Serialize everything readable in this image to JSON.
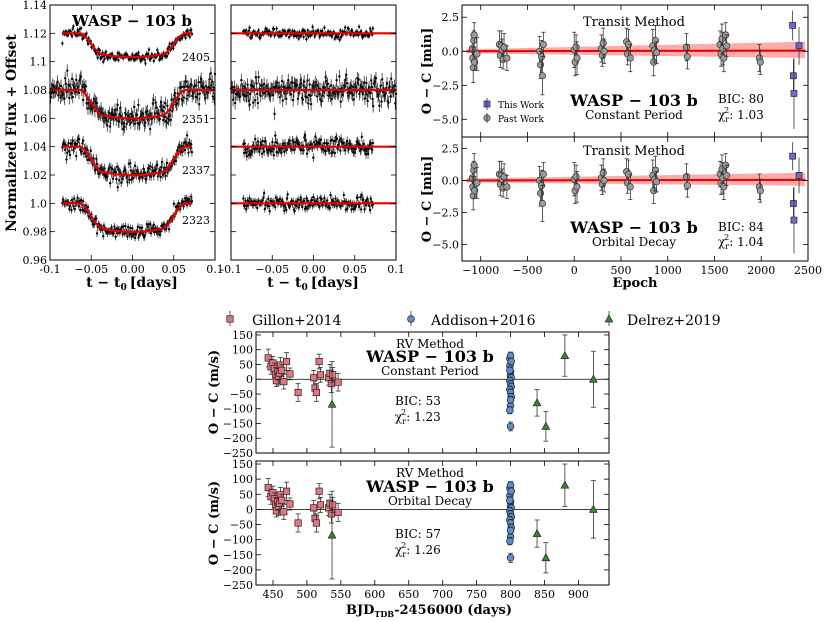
{
  "colors": {
    "model": "#e60000",
    "band": "#ff6666",
    "this_work": "#6b6bd6",
    "past_work": "#9a9a9a",
    "gillon": "#e8737f",
    "addison": "#5b8fd1",
    "delrez": "#2e8b2e"
  },
  "markers": {
    "this_work": "square",
    "past_work": "circle",
    "gillon": "square",
    "addison": "circle",
    "delrez": "triangle"
  },
  "lightcurves": {
    "ylabel": "Normalized Flux + Offset",
    "xlabel": "t − t",
    "xlabel_sub": "0",
    "xlabel_unit": "[days]",
    "planet": "WASP − 103 b",
    "epoch_labels": [
      "2405",
      "2351",
      "2337",
      "2323"
    ]
  },
  "timing": {
    "xlabel": "Epoch",
    "ylabel": "O − C [min]",
    "panel_titles": [
      "Transit Method",
      "Transit Method"
    ],
    "planet": "WASP − 103 b",
    "models": [
      "Constant Period",
      "Orbital Decay"
    ],
    "bic_texts": [
      "BIC: 80",
      "BIC: 84"
    ],
    "chi_values": [
      "1.03",
      "1.04"
    ],
    "chi_prefix": "χ",
    "chi_sub": "r",
    "chi_sup": "2",
    "legend": [
      "This Work",
      "Past Work"
    ]
  },
  "rv": {
    "legend": [
      "Gillon+2014",
      "Addison+2016",
      "Delrez+2019"
    ],
    "method": "RV Method",
    "planet": "WASP − 103 b",
    "models": [
      "Constant Period",
      "Orbital Decay"
    ],
    "bic_texts": [
      "BIC: 53",
      "BIC: 57"
    ],
    "chi_values": [
      "1.23",
      "1.26"
    ],
    "chi_prefix": "χ",
    "chi_sub": "r",
    "chi_sup": "2",
    "ylabel": "O − C (m/s)",
    "xlabel": "BJD",
    "xlabel_sub": "TDB",
    "xlabel_rest": "-2456000 (days)"
  },
  "chart_data": [
    {
      "id": "lightcurves-modeled",
      "type": "scatter",
      "xlabel": "t − t0 [days]",
      "ylabel": "Normalized Flux + Offset",
      "xlim": [
        -0.1,
        0.1
      ],
      "ylim": [
        0.96,
        1.14
      ],
      "xticks": [
        -0.1,
        -0.05,
        0.0,
        0.05,
        0.1
      ],
      "xtick_labels": [
        "-0.1",
        "−0.05",
        "0.00",
        "0.05",
        "0.1"
      ],
      "yticks": [
        0.96,
        0.98,
        1.0,
        1.02,
        1.04,
        1.06,
        1.08,
        1.1,
        1.12,
        1.14
      ],
      "ytick_labels": [
        "0.96",
        "0.98",
        "1.0",
        "1.02",
        "1.04",
        "1.06",
        "1.08",
        "1.1",
        "1.12",
        "1.14"
      ],
      "series": [
        {
          "name": "2405",
          "baseline": 1.12,
          "depth": 0.015,
          "t_start": -0.085,
          "t_end": 0.072,
          "scatter": 0.0018
        },
        {
          "name": "2351",
          "baseline": 1.08,
          "depth": 0.018,
          "t_start": -0.1,
          "t_end": 0.1,
          "scatter": 0.0045
        },
        {
          "name": "2337",
          "baseline": 1.04,
          "depth": 0.018,
          "t_start": -0.085,
          "t_end": 0.072,
          "scatter": 0.0032
        },
        {
          "name": "2323",
          "baseline": 1.0,
          "depth": 0.018,
          "t_start": -0.085,
          "t_end": 0.072,
          "scatter": 0.0025
        }
      ],
      "transit_t1": -0.065,
      "transit_t2": -0.035,
      "transit_t3": 0.035,
      "transit_t4": 0.065
    },
    {
      "id": "lightcurves-residuals",
      "type": "scatter",
      "xlabel": "t − t0 [days]",
      "xlim": [
        -0.1,
        0.1
      ],
      "ylim": [
        0.96,
        1.14
      ],
      "xticks": [
        -0.1,
        -0.05,
        0.0,
        0.05,
        0.1
      ],
      "xtick_labels": [
        "-0.1",
        "−0.05",
        "0.00",
        "0.05",
        "0.1"
      ],
      "series": [
        {
          "name": "2405",
          "level": 1.12,
          "t_start": -0.085,
          "t_end": 0.072,
          "scatter": 0.0018
        },
        {
          "name": "2351",
          "level": 1.08,
          "t_start": -0.1,
          "t_end": 0.1,
          "scatter": 0.0045
        },
        {
          "name": "2337",
          "level": 1.04,
          "t_start": -0.085,
          "t_end": 0.072,
          "scatter": 0.0032
        },
        {
          "name": "2323",
          "level": 1.0,
          "t_start": -0.085,
          "t_end": 0.072,
          "scatter": 0.0025
        }
      ]
    },
    {
      "id": "timing-constant-period",
      "type": "scatter",
      "title": "Transit Method",
      "ylabel": "O − C [min]",
      "xlim": [
        -1200,
        2500
      ],
      "ylim": [
        -6.3,
        3.4
      ],
      "xticks": [
        -1000,
        -500,
        0,
        500,
        1000,
        1500,
        2000,
        2500
      ],
      "xtick_labels": [
        "−1000",
        "−500",
        "0",
        "500",
        "1000",
        "1500",
        "2000",
        "2500"
      ],
      "yticks": [
        -5.0,
        -2.5,
        0.0,
        2.5
      ],
      "ytick_labels": [
        "−5.0",
        "−2.5",
        "0.0",
        "2.5"
      ],
      "band_end_halfwidth": 0.7,
      "series": [
        {
          "name": "Past Work",
          "points": [
            [
              -1090,
              0.2,
              1.0
            ],
            [
              -1085,
              -0.5,
              0.8
            ],
            [
              -1080,
              -1.2,
              1.1
            ],
            [
              -1075,
              0.8,
              0.7
            ],
            [
              -1070,
              1.2,
              0.9
            ],
            [
              -1065,
              -0.8,
              0.6
            ],
            [
              -1040,
              -0.2,
              1.2
            ],
            [
              -800,
              0.5,
              1.0
            ],
            [
              -790,
              -0.3,
              0.9
            ],
            [
              -780,
              0.4,
              1.1
            ],
            [
              -770,
              0.1,
              0.8
            ],
            [
              -760,
              -0.6,
              0.7
            ],
            [
              -750,
              0.3,
              1.0
            ],
            [
              -720,
              -0.5,
              0.9
            ],
            [
              -370,
              0.0,
              1.1
            ],
            [
              -360,
              -1.0,
              1.0
            ],
            [
              -350,
              -0.4,
              1.2
            ],
            [
              -340,
              -1.8,
              1.4
            ],
            [
              -330,
              0.5,
              0.9
            ],
            [
              0,
              0.1,
              1.3
            ],
            [
              10,
              -0.8,
              1.0
            ],
            [
              20,
              0.3,
              0.9
            ],
            [
              30,
              -0.5,
              1.2
            ],
            [
              290,
              0.2,
              1.0
            ],
            [
              300,
              -0.3,
              0.8
            ],
            [
              310,
              0.6,
              1.1
            ],
            [
              320,
              0.0,
              0.9
            ],
            [
              560,
              0.7,
              1.0
            ],
            [
              570,
              -0.2,
              0.8
            ],
            [
              580,
              0.5,
              1.1
            ],
            [
              600,
              -0.5,
              1.0
            ],
            [
              840,
              0.4,
              1.2
            ],
            [
              850,
              -0.8,
              1.0
            ],
            [
              860,
              0.1,
              0.9
            ],
            [
              870,
              0.8,
              1.1
            ],
            [
              880,
              -0.1,
              0.8
            ],
            [
              1200,
              0.3,
              1.0
            ],
            [
              1210,
              -0.4,
              0.9
            ],
            [
              1560,
              0.5,
              1.0
            ],
            [
              1570,
              -0.2,
              0.9
            ],
            [
              1580,
              0.9,
              1.1
            ],
            [
              1590,
              0.2,
              1.2
            ],
            [
              1600,
              -0.5,
              1.0
            ],
            [
              1620,
              1.2,
              0.9
            ],
            [
              1630,
              0.4,
              0.8
            ],
            [
              1980,
              -0.5,
              1.0
            ],
            [
              1990,
              -0.8,
              0.9
            ]
          ]
        },
        {
          "name": "This Work",
          "points": [
            [
              2336,
              1.9,
              1.1
            ],
            [
              2344,
              -1.8,
              1.2
            ],
            [
              2350,
              -3.1,
              2.6
            ],
            [
              2404,
              0.4,
              1.4
            ]
          ]
        }
      ]
    },
    {
      "id": "timing-orbital-decay",
      "type": "scatter",
      "title": "Transit Method",
      "ylabel": "O − C [min]",
      "xlabel": "Epoch",
      "xlim": [
        -1200,
        2500
      ],
      "ylim": [
        -6.3,
        3.4
      ],
      "xticks": [
        -1000,
        -500,
        0,
        500,
        1000,
        1500,
        2000,
        2500
      ],
      "xtick_labels": [
        "−1000",
        "−500",
        "0",
        "500",
        "1000",
        "1500",
        "2000",
        "2500"
      ],
      "yticks": [
        -5.0,
        -2.5,
        0.0,
        2.5
      ],
      "ytick_labels": [
        "−5.0",
        "−2.5",
        "0.0",
        "2.5"
      ],
      "band_end_halfwidth": 0.6,
      "series": [
        {
          "name": "Past Work",
          "same_as": "timing-constant-period"
        },
        {
          "name": "This Work",
          "points": [
            [
              2336,
              1.9,
              1.1
            ],
            [
              2344,
              -1.8,
              1.2
            ],
            [
              2350,
              -3.1,
              2.6
            ],
            [
              2404,
              0.4,
              1.4
            ]
          ]
        }
      ]
    },
    {
      "id": "rv-constant-period",
      "type": "scatter",
      "title": "RV Method",
      "ylabel": "O − C (m/s)",
      "xlim": [
        425,
        945
      ],
      "ylim": [
        -250,
        160
      ],
      "xticks": [
        450,
        500,
        550,
        600,
        650,
        700,
        750,
        800,
        850,
        900
      ],
      "xtick_labels": [
        "450",
        "500",
        "550",
        "600",
        "650",
        "700",
        "750",
        "800",
        "850",
        "900"
      ],
      "yticks": [
        -250,
        -200,
        -150,
        -100,
        -50,
        0,
        50,
        100,
        150
      ],
      "ytick_labels": [
        "−250",
        "−200",
        "−150",
        "−100",
        "−50",
        "0",
        "50",
        "100",
        "150"
      ],
      "series": [
        {
          "name": "Gillon+2014",
          "points": [
            [
              443,
              72,
              30
            ],
            [
              447,
              42,
              25
            ],
            [
              450,
              55,
              22
            ],
            [
              452,
              35,
              20
            ],
            [
              454,
              15,
              25
            ],
            [
              455,
              -5,
              20
            ],
            [
              457,
              25,
              28
            ],
            [
              458,
              10,
              30
            ],
            [
              460,
              20,
              20
            ],
            [
              461,
              48,
              25
            ],
            [
              463,
              30,
              20
            ],
            [
              466,
              -8,
              25
            ],
            [
              470,
              60,
              30
            ],
            [
              475,
              18,
              20
            ],
            [
              487,
              -45,
              30
            ],
            [
              510,
              5,
              25
            ],
            [
              512,
              -30,
              25
            ],
            [
              514,
              -45,
              30
            ],
            [
              518,
              60,
              25
            ],
            [
              520,
              15,
              25
            ],
            [
              532,
              5,
              25
            ],
            [
              534,
              20,
              30
            ],
            [
              536,
              -15,
              30
            ],
            [
              538,
              15,
              25
            ],
            [
              546,
              -10,
              30
            ]
          ]
        },
        {
          "name": "Addison+2016",
          "points": [
            [
              799,
              70,
              12
            ],
            [
              799,
              45,
              12
            ],
            [
              800,
              25,
              12
            ],
            [
              800,
              10,
              12
            ],
            [
              801,
              5,
              12
            ],
            [
              799,
              -5,
              12
            ],
            [
              800,
              -15,
              12
            ],
            [
              801,
              -25,
              12
            ],
            [
              799,
              -35,
              12
            ],
            [
              800,
              -45,
              12
            ],
            [
              801,
              -60,
              12
            ],
            [
              800,
              -90,
              12
            ],
            [
              799,
              -105,
              12
            ],
            [
              800,
              -160,
              15
            ],
            [
              800,
              80,
              12
            ],
            [
              801,
              60,
              12
            ],
            [
              799,
              30,
              12
            ],
            [
              800,
              -70,
              12
            ]
          ]
        },
        {
          "name": "Delrez+2019",
          "points": [
            [
              537,
              -85,
              145
            ],
            [
              839,
              -80,
              45
            ],
            [
              852,
              -160,
              50
            ],
            [
              880,
              80,
              70
            ],
            [
              922,
              0,
              95
            ]
          ]
        }
      ]
    },
    {
      "id": "rv-orbital-decay",
      "type": "scatter",
      "title": "RV Method",
      "ylabel": "O − C (m/s)",
      "xlabel": "BJD_TDB-2456000 (days)",
      "xlim": [
        425,
        945
      ],
      "ylim": [
        -250,
        160
      ],
      "xticks": [
        450,
        500,
        550,
        600,
        650,
        700,
        750,
        800,
        850,
        900
      ],
      "xtick_labels": [
        "450",
        "500",
        "550",
        "600",
        "650",
        "700",
        "750",
        "800",
        "850",
        "900"
      ],
      "yticks": [
        -250,
        -200,
        -150,
        -100,
        -50,
        0,
        50,
        100,
        150
      ],
      "ytick_labels": [
        "−250",
        "−200",
        "−150",
        "−100",
        "−50",
        "0",
        "50",
        "100",
        "150"
      ],
      "series": [
        {
          "name": "Gillon+2014",
          "same_as": "rv-constant-period"
        },
        {
          "name": "Addison+2016",
          "same_as": "rv-constant-period"
        },
        {
          "name": "Delrez+2019",
          "same_as": "rv-constant-period"
        }
      ]
    }
  ]
}
